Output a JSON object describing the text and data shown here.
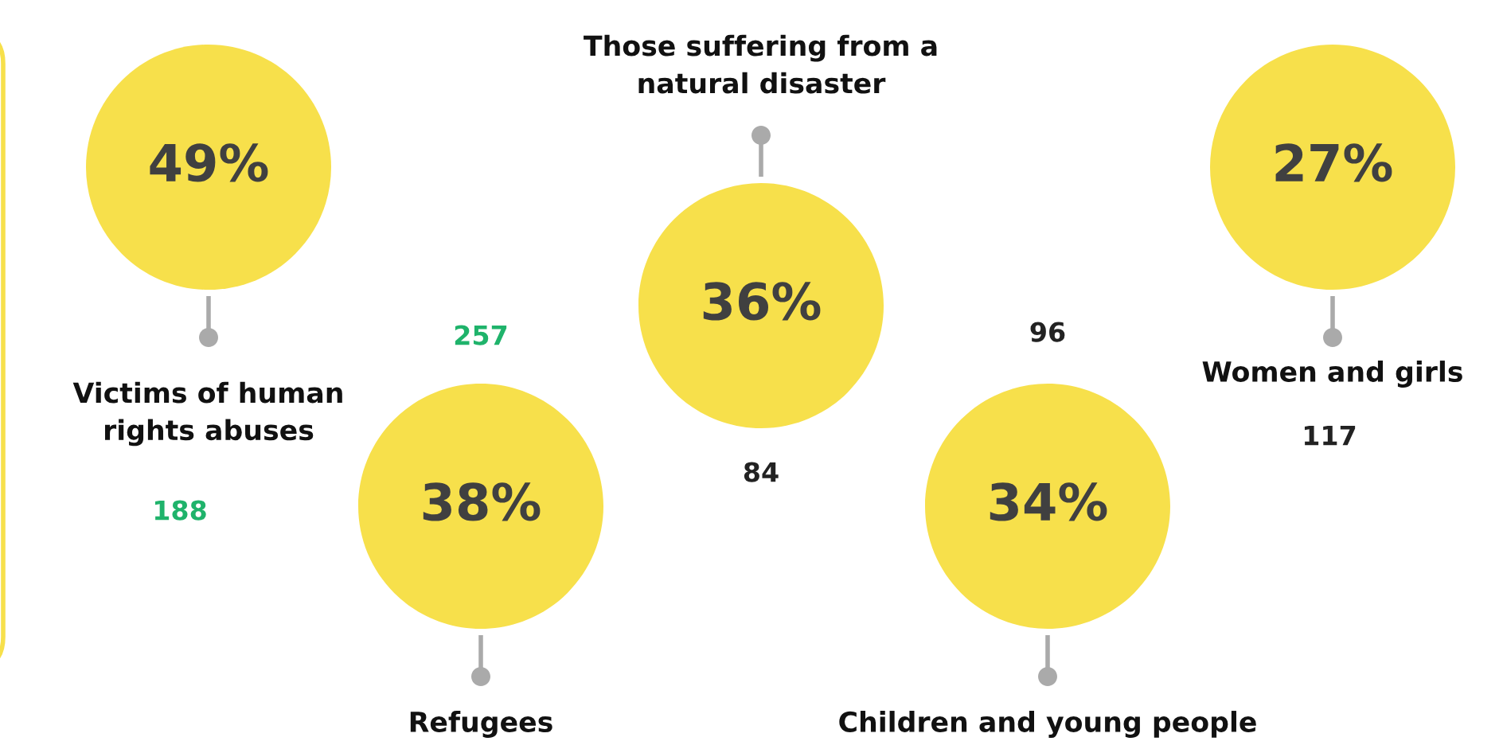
{
  "chart_data": {
    "type": "other",
    "categories": [
      "Victims of human rights abuses",
      "Refugees",
      "Those suffering from a natural disaster",
      "Children and young people",
      "Women and girls"
    ],
    "values": [
      49,
      38,
      36,
      34,
      27
    ],
    "value_labels": [
      "49%",
      "38%",
      "36%",
      "34%",
      "27%"
    ],
    "colors": [
      "#f7e04b",
      "#f7e04b",
      "#f7e04b",
      "#f7e04b",
      "#f7e04b"
    ],
    "annotations": [
      "188",
      "257",
      "84",
      "96",
      "117"
    ]
  }
}
